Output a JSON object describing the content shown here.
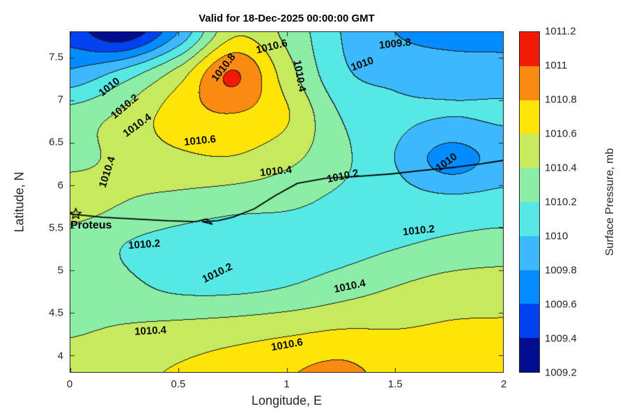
{
  "title": "Valid for 18-Dec-2025 00:00:00 GMT",
  "axes": {
    "xlabel": "Longitude, E",
    "ylabel": "Latitude, N"
  },
  "chart_data": {
    "type": "heatmap",
    "subtype": "filled-contour",
    "title": "Valid for 18-Dec-2025 00:00:00 GMT",
    "xlabel": "Longitude, E",
    "ylabel": "Latitude, N",
    "xlim": [
      0,
      2
    ],
    "ylim": [
      3.8,
      7.8
    ],
    "x_ticks": [
      0,
      0.5,
      1,
      1.5,
      2
    ],
    "y_ticks": [
      4,
      4.5,
      5,
      5.5,
      6,
      6.5,
      7,
      7.5
    ],
    "x": [
      0,
      0.25,
      0.5,
      0.75,
      1.0,
      1.25,
      1.5,
      1.75,
      2.0
    ],
    "y": [
      3.8,
      4.3,
      4.8,
      5.3,
      5.8,
      6.3,
      6.8,
      7.3,
      7.8
    ],
    "values": [
      [
        1010.5,
        1010.55,
        1010.62,
        1010.7,
        1010.78,
        1010.85,
        1010.72,
        1010.65,
        1010.6
      ],
      [
        1010.38,
        1010.42,
        1010.46,
        1010.5,
        1010.55,
        1010.6,
        1010.6,
        1010.62,
        1010.62
      ],
      [
        1010.35,
        1010.25,
        1010.16,
        1010.15,
        1010.2,
        1010.3,
        1010.4,
        1010.48,
        1010.5
      ],
      [
        1010.3,
        1010.2,
        1010.12,
        1010.08,
        1010.1,
        1010.12,
        1010.18,
        1010.24,
        1010.28
      ],
      [
        1010.5,
        1010.4,
        1010.34,
        1010.28,
        1010.24,
        1010.16,
        1010.1,
        1010.06,
        1010.08
      ],
      [
        1010.35,
        1010.45,
        1010.55,
        1010.58,
        1010.45,
        1010.25,
        1010.0,
        1009.72,
        1009.88
      ],
      [
        1010.3,
        1010.45,
        1010.7,
        1010.78,
        1010.62,
        1010.2,
        1010.05,
        1010.0,
        1010.02
      ],
      [
        1009.85,
        1010.1,
        1010.5,
        1011.02,
        1010.5,
        1010.05,
        1009.95,
        1009.92,
        1009.92
      ],
      [
        1009.5,
        1009.25,
        1009.8,
        1010.55,
        1010.35,
        1010.0,
        1009.8,
        1009.72,
        1009.7
      ]
    ],
    "levels": [
      1009.2,
      1009.4,
      1009.6,
      1009.8,
      1010,
      1010.2,
      1010.4,
      1010.6,
      1010.8,
      1011,
      1011.2
    ],
    "colorbar": {
      "label": "Surface Pressure, mb",
      "tick_labels": [
        "1009.2",
        "1009.4",
        "1009.6",
        "1009.8",
        "1010",
        "1010.2",
        "1010.4",
        "1010.6",
        "1010.8",
        "1011",
        "1011.2"
      ],
      "colors": [
        "#000d8f",
        "#0041f0",
        "#028cff",
        "#3cb9fc",
        "#55e8e4",
        "#8beda6",
        "#c6e95e",
        "#ffe408",
        "#fb8b10",
        "#f01a05"
      ]
    },
    "contour_labels": [
      {
        "text": "1010",
        "lon": 0.18,
        "lat": 7.15,
        "rot": -38
      },
      {
        "text": "1010.2",
        "lon": 0.25,
        "lat": 6.92,
        "rot": -40
      },
      {
        "text": "1010.4",
        "lon": 0.31,
        "lat": 6.7,
        "rot": -36
      },
      {
        "text": "1010.4",
        "lon": 0.17,
        "lat": 6.15,
        "rot": -72
      },
      {
        "text": "1010.6",
        "lon": 0.6,
        "lat": 6.52,
        "rot": -6
      },
      {
        "text": "1010.8",
        "lon": 0.71,
        "lat": 7.38,
        "rot": -52
      },
      {
        "text": "1010.6",
        "lon": 0.93,
        "lat": 7.63,
        "rot": -14
      },
      {
        "text": "1010.4",
        "lon": 1.06,
        "lat": 7.28,
        "rot": 80
      },
      {
        "text": "1010",
        "lon": 1.35,
        "lat": 7.42,
        "rot": -20
      },
      {
        "text": "1009.8",
        "lon": 1.5,
        "lat": 7.66,
        "rot": -6
      },
      {
        "text": "1010",
        "lon": 1.74,
        "lat": 6.27,
        "rot": -36
      },
      {
        "text": "1010.4",
        "lon": 0.95,
        "lat": 6.16,
        "rot": -6
      },
      {
        "text": "1010.2",
        "lon": 1.26,
        "lat": 6.1,
        "rot": -12
      },
      {
        "text": "1010.2",
        "lon": 1.61,
        "lat": 5.46,
        "rot": -6
      },
      {
        "text": "1010.2",
        "lon": 0.34,
        "lat": 5.3,
        "rot": -4
      },
      {
        "text": "1010.2",
        "lon": 0.68,
        "lat": 4.96,
        "rot": -26
      },
      {
        "text": "1010.4",
        "lon": 1.29,
        "lat": 4.81,
        "rot": -12
      },
      {
        "text": "1010.4",
        "lon": 0.37,
        "lat": 4.28,
        "rot": -3
      },
      {
        "text": "1010.6",
        "lon": 1.0,
        "lat": 4.12,
        "rot": -10
      }
    ],
    "marker": {
      "label": "Proteus",
      "symbol": "pentagram",
      "lon": 0.025,
      "lat": 5.66,
      "label_lon": 0.0,
      "label_lat": 5.52
    },
    "track": [
      [
        0.0,
        5.66
      ],
      [
        0.15,
        5.62
      ],
      [
        0.3,
        5.6
      ],
      [
        0.45,
        5.58
      ],
      [
        0.58,
        5.57
      ],
      [
        0.63,
        5.6
      ],
      [
        0.655,
        5.54
      ],
      [
        0.61,
        5.57
      ],
      [
        0.68,
        5.58
      ],
      [
        0.75,
        5.62
      ],
      [
        0.85,
        5.72
      ],
      [
        0.95,
        5.88
      ],
      [
        1.05,
        6.02
      ],
      [
        1.18,
        6.08
      ],
      [
        1.32,
        6.1
      ],
      [
        1.48,
        6.13
      ],
      [
        1.62,
        6.17
      ],
      [
        1.78,
        6.21
      ],
      [
        1.9,
        6.25
      ],
      [
        2.0,
        6.29
      ]
    ]
  }
}
